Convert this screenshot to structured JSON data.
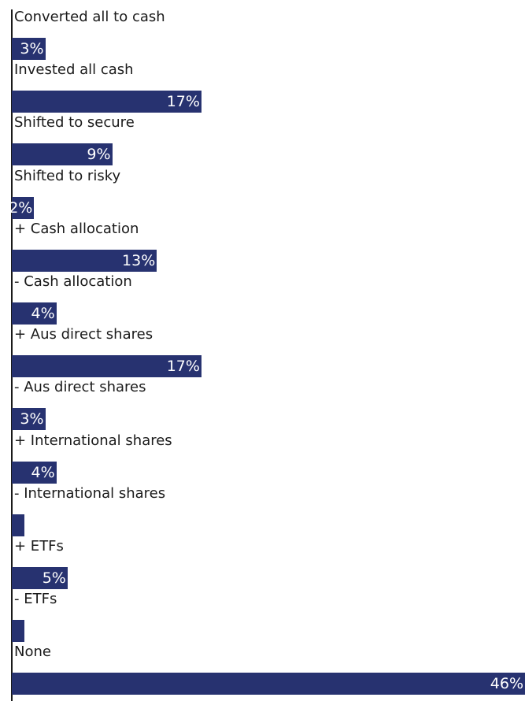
{
  "chart_data": {
    "type": "bar",
    "orientation": "horizontal",
    "categories": [
      "Converted all to cash",
      "Invested all cash",
      "Shifted to secure",
      "Shifted to risky",
      "+ Cash allocation",
      "- Cash allocation",
      "+ Aus direct shares",
      "- Aus direct shares",
      "+ International shares",
      "- International shares",
      "+ ETFs",
      "- ETFs",
      "None"
    ],
    "values": [
      3,
      17,
      9,
      2,
      13,
      4,
      17,
      3,
      4,
      1,
      5,
      1,
      46
    ],
    "value_labels": [
      "3%",
      "17%",
      "9%",
      "2%",
      "13%",
      "4%",
      "17%",
      "3%",
      "4%",
      "",
      "5%",
      "",
      "46%"
    ],
    "bar_color": "#273270",
    "grid": false
  }
}
